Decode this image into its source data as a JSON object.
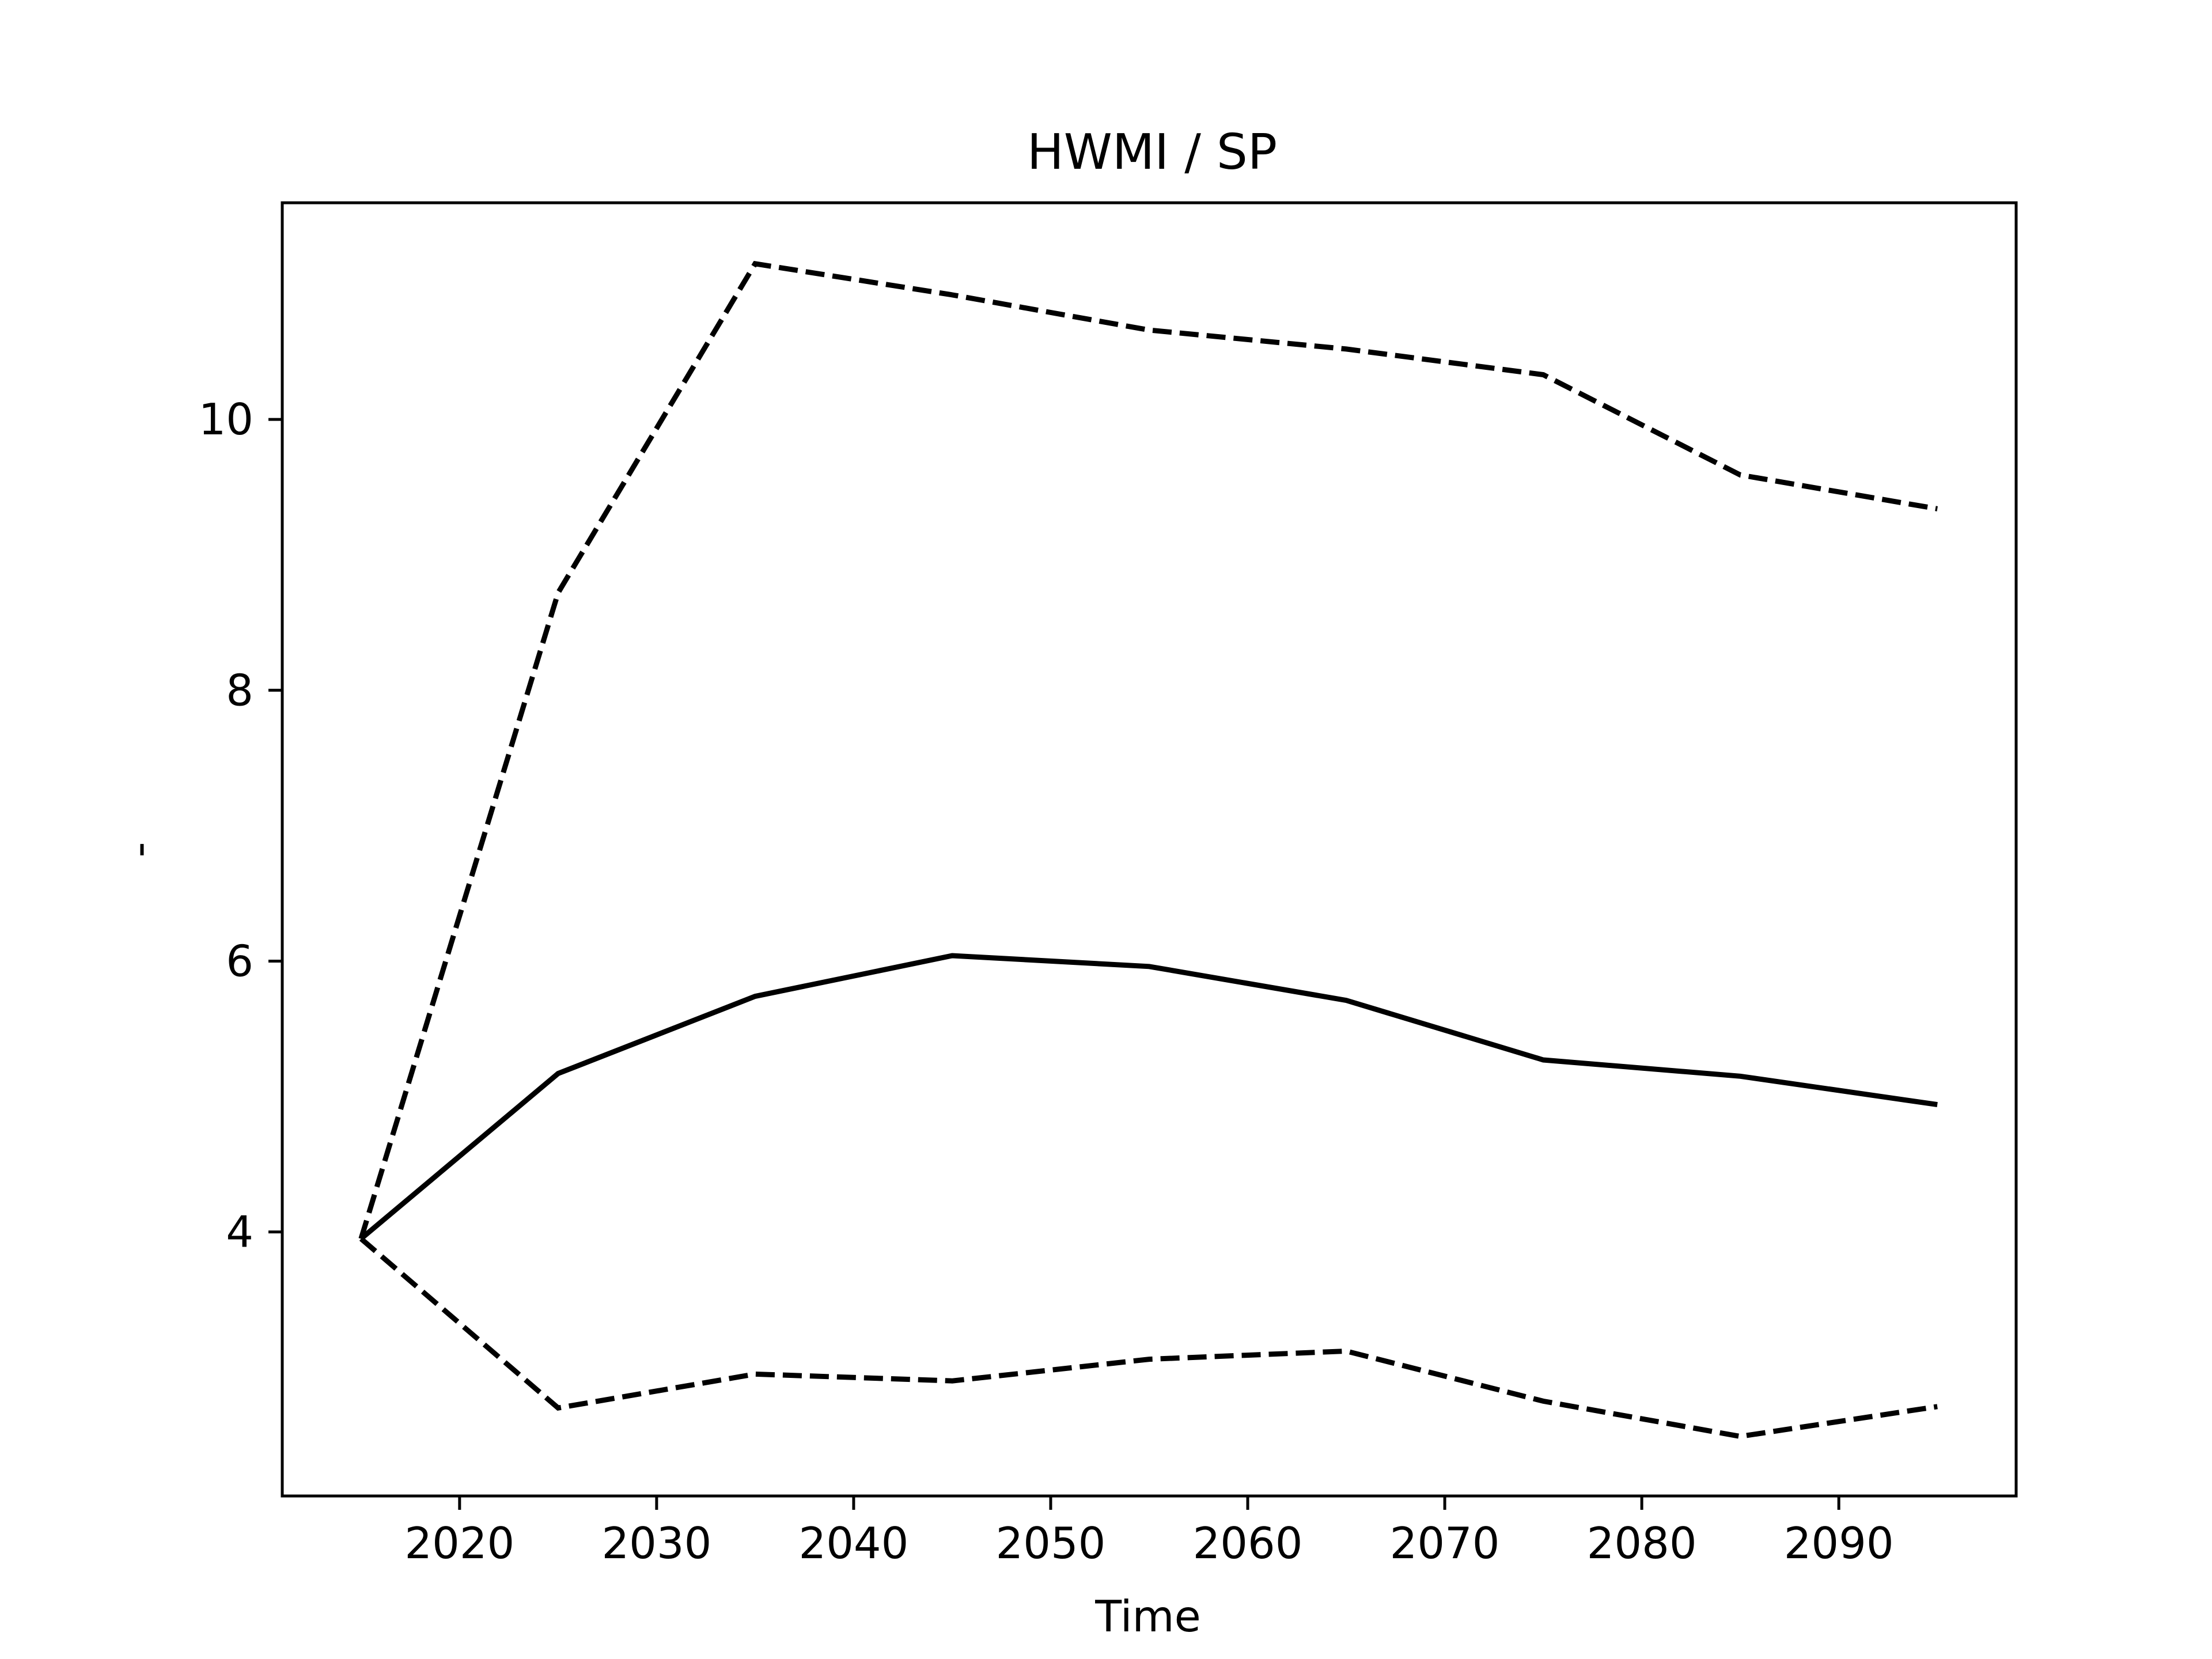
{
  "chart_data": {
    "type": "line",
    "title": "HWMI / SP",
    "xlabel": "Time",
    "ylabel": "-",
    "x": [
      2015,
      2025,
      2035,
      2045,
      2055,
      2065,
      2075,
      2085,
      2095
    ],
    "series": [
      {
        "style": "solid",
        "color": "#000000",
        "values": [
          3.95,
          5.17,
          5.74,
          6.04,
          5.96,
          5.71,
          5.27,
          5.15,
          4.94
        ]
      },
      {
        "style": "dashed",
        "color": "#000000",
        "values": [
          3.95,
          8.72,
          11.15,
          10.92,
          10.66,
          10.52,
          10.33,
          9.59,
          9.34
        ]
      },
      {
        "style": "dashed",
        "color": "#000000",
        "values": [
          3.95,
          2.7,
          2.95,
          2.9,
          3.06,
          3.12,
          2.75,
          2.49,
          2.71
        ]
      }
    ],
    "xlim": [
      2011,
      2099
    ],
    "ylim": [
      2.05,
      11.6
    ],
    "xticks": [
      2020,
      2030,
      2040,
      2050,
      2060,
      2070,
      2080,
      2090
    ],
    "yticks": [
      4,
      6,
      8,
      10
    ],
    "grid": false,
    "legend": "none"
  }
}
